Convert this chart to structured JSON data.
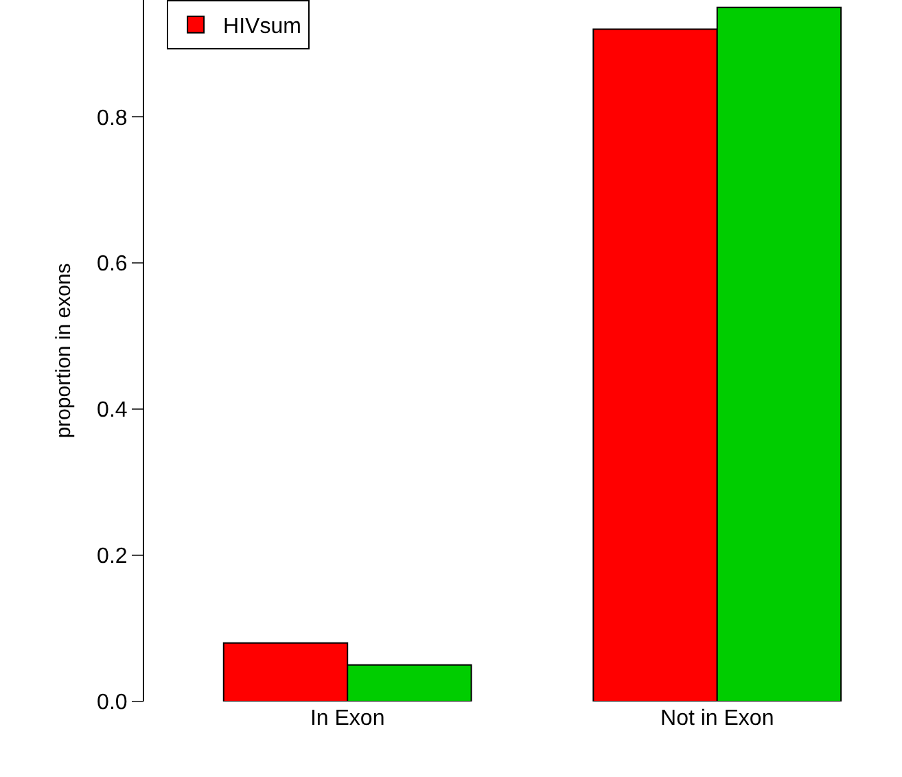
{
  "chart_data": {
    "type": "bar",
    "ylabel": "proportion in exons",
    "categories": [
      "In Exon",
      "Not in Exon"
    ],
    "series": [
      {
        "name": "HIVsum",
        "color": "#ff0000",
        "values": [
          0.08,
          0.92
        ]
      },
      {
        "color": "#00cd00",
        "values": [
          0.05,
          0.95
        ]
      }
    ],
    "ylim": [
      0,
      0.96
    ],
    "yticks": [
      {
        "value": 0,
        "label": "0.0"
      },
      {
        "value": 0.2,
        "label": "0.2"
      },
      {
        "value": 0.4,
        "label": "0.4"
      },
      {
        "value": 0.6,
        "label": "0.6"
      },
      {
        "value": 0.8,
        "label": "0.8"
      }
    ],
    "legend": "top left"
  }
}
